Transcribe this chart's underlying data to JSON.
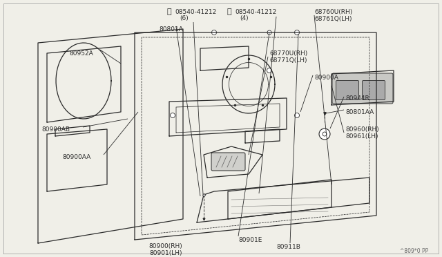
{
  "bg_color": "#f0efe8",
  "line_color": "#2a2a2a",
  "text_color": "#2a2a2a",
  "fig_width": 6.4,
  "fig_height": 3.72,
  "watermark": "^809*0 PP",
  "label_font_size": 6.5,
  "label_font": "DejaVu Sans",
  "parts_labels": {
    "screw1": "S08540-41212\n(6)",
    "screw2": "S08540-41212\n(4)",
    "p80801A": "80801A",
    "p80952A": "80952A",
    "p68760U": "68760U(RH)\n68761Q(LH)",
    "p68770U": "68770U(RH)\n68771Q(LH)",
    "p80900A": "80900A",
    "p80944R": "80944R",
    "p80801AA": "80801AA",
    "p80960": "80960(RH)\n80961(LH)",
    "p80900AB": "80900AB",
    "p80900AA": "80900AA",
    "p80901E": "80901E",
    "p80911B": "80911B",
    "p80900RH": "80900(RH)\n80901(LH)"
  }
}
